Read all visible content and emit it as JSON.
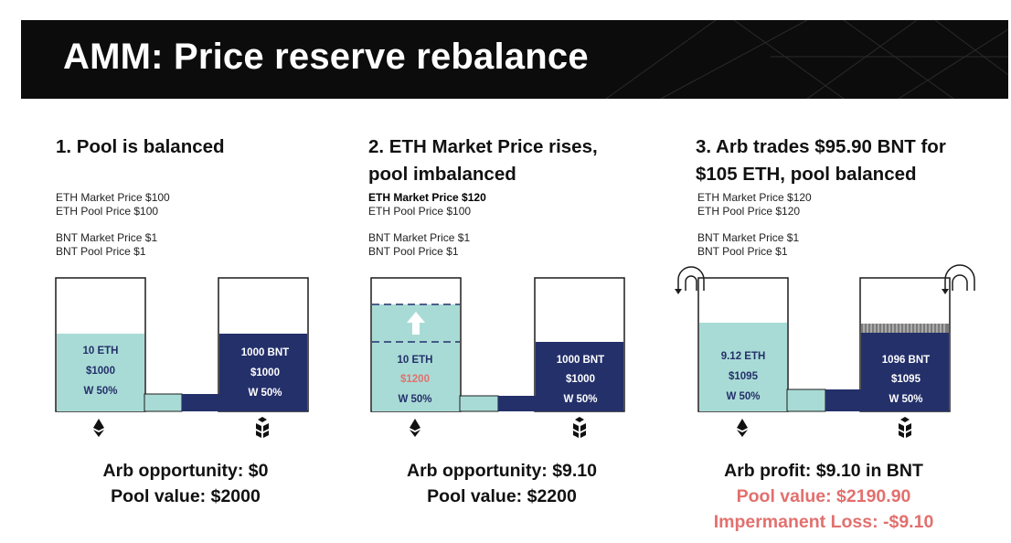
{
  "title": "AMM: Price reserve rebalance",
  "colors": {
    "eth_fill": "#a9dbd6",
    "bnt_fill": "#24306a",
    "outline": "#1c1c1c",
    "highlight_red": "#e2706e"
  },
  "panels": [
    {
      "title_lines": [
        "1. Pool is balanced"
      ],
      "prices": [
        "ETH Market Price $100",
        "ETH Pool Price $100",
        "BNT Market Price $1",
        "BNT Pool Price $1"
      ],
      "eth_pool": {
        "amount": "10 ETH",
        "value": "$1000",
        "weight": "W 50%",
        "level": 0.58
      },
      "bnt_pool": {
        "amount": "1000 BNT",
        "value": "$1000",
        "weight": "W 50%",
        "level": 0.58
      },
      "summary": [
        "Arb opportunity: $0",
        "Pool value: $2000"
      ]
    },
    {
      "title_lines": [
        "2. ETH Market Price rises,",
        "pool imbalanced"
      ],
      "prices": [
        "ETH Market Price $120",
        "ETH Pool Price $100",
        "BNT Market Price $1",
        "BNT Pool Price $1"
      ],
      "eth_pool": {
        "amount": "10 ETH",
        "value": "$1200",
        "weight": "W 50%",
        "level": 0.79
      },
      "bnt_pool": {
        "amount": "1000 BNT",
        "value": "$1000",
        "weight": "W 50%",
        "level": 0.52
      },
      "summary": [
        "Arb opportunity: $9.10",
        "Pool value: $2200"
      ]
    },
    {
      "title_lines": [
        "3. Arb trades $95.90 BNT for",
        "$105 ETH, pool balanced"
      ],
      "prices": [
        "ETH Market Price $120",
        "ETH Pool Price $120",
        "BNT Market Price $1",
        "BNT Pool Price $1"
      ],
      "eth_pool": {
        "amount": "9.12 ETH",
        "value": "$1095",
        "weight": "W 50%",
        "level": 0.67
      },
      "bnt_pool": {
        "amount": "1096 BNT",
        "value": "$1095",
        "weight": "W 50%",
        "level": 0.67
      },
      "summary": [
        "Arb profit: $9.10 in BNT",
        "Pool value: $2190.90",
        "Impermanent Loss: -$9.10"
      ]
    }
  ]
}
